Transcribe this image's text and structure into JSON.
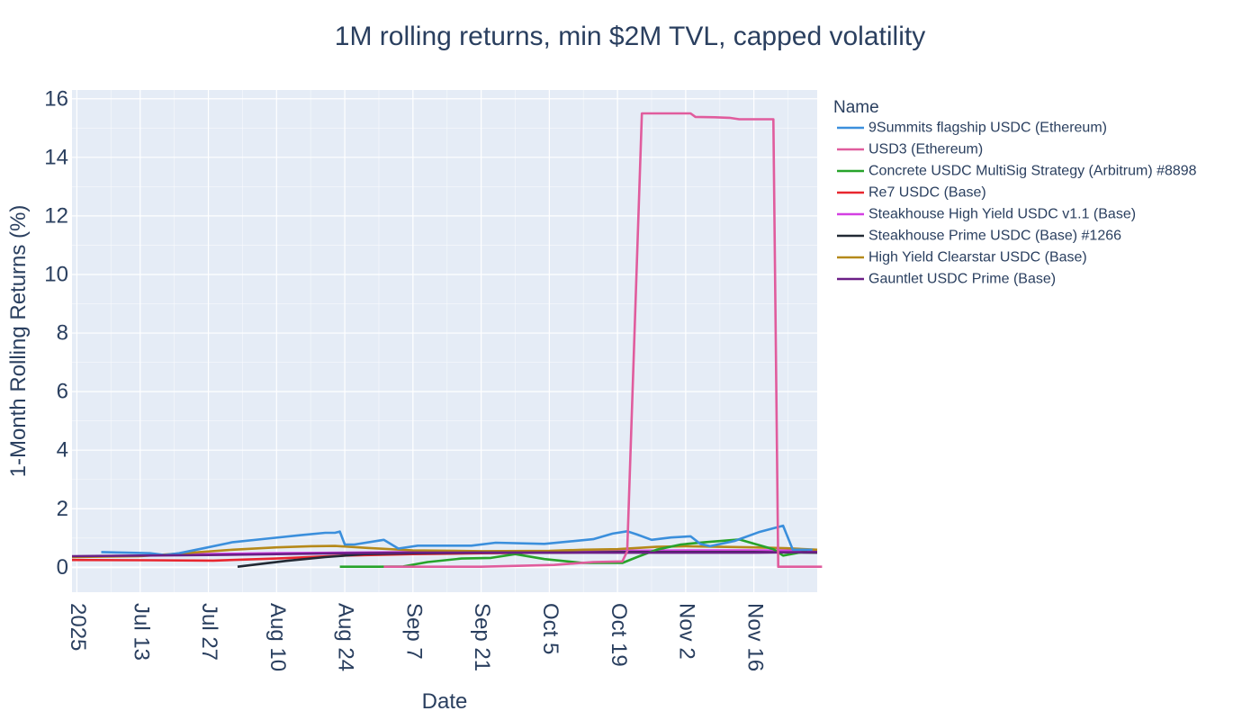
{
  "chart_data": {
    "type": "line",
    "title": "1M rolling returns, min $2M TVL, capped volatility",
    "xlabel": "Date",
    "ylabel": "1-Month Rolling Returns (%)",
    "xlim": [
      "2025-06-29",
      "2025-11-29"
    ],
    "ylim": [
      -0.85,
      16.3
    ],
    "x_ticks": [
      {
        "date": "2025-06-30",
        "label": "2025"
      },
      {
        "date": "2025-07-13",
        "label": "Jul 13"
      },
      {
        "date": "2025-07-27",
        "label": "Jul 27"
      },
      {
        "date": "2025-08-10",
        "label": "Aug 10"
      },
      {
        "date": "2025-08-24",
        "label": "Aug 24"
      },
      {
        "date": "2025-09-07",
        "label": "Sep 7"
      },
      {
        "date": "2025-09-21",
        "label": "Sep 21"
      },
      {
        "date": "2025-10-05",
        "label": "Oct 5"
      },
      {
        "date": "2025-10-19",
        "label": "Oct 19"
      },
      {
        "date": "2025-11-02",
        "label": "Nov 2"
      },
      {
        "date": "2025-11-16",
        "label": "Nov 16"
      }
    ],
    "y_ticks": [
      0,
      2,
      4,
      6,
      8,
      10,
      12,
      14,
      16
    ],
    "grid": true,
    "legend": {
      "title": "Name",
      "placement": "right"
    },
    "series": [
      {
        "name": "9Summits flagship USDC (Ethereum)",
        "color": "#3b8fdc",
        "points": [
          [
            "2025-07-05",
            0.52
          ],
          [
            "2025-07-10",
            0.5
          ],
          [
            "2025-07-15",
            0.48
          ],
          [
            "2025-07-18",
            0.42
          ],
          [
            "2025-07-21",
            0.48
          ],
          [
            "2025-07-26",
            0.65
          ],
          [
            "2025-08-01",
            0.86
          ],
          [
            "2025-08-08",
            0.98
          ],
          [
            "2025-08-15",
            1.1
          ],
          [
            "2025-08-20",
            1.18
          ],
          [
            "2025-08-22",
            1.18
          ],
          [
            "2025-08-23",
            1.22
          ],
          [
            "2025-08-24",
            0.78
          ],
          [
            "2025-08-26",
            0.78
          ],
          [
            "2025-09-01",
            0.94
          ],
          [
            "2025-09-04",
            0.64
          ],
          [
            "2025-09-08",
            0.74
          ],
          [
            "2025-09-14",
            0.74
          ],
          [
            "2025-09-19",
            0.74
          ],
          [
            "2025-09-24",
            0.84
          ],
          [
            "2025-10-04",
            0.8
          ],
          [
            "2025-10-14",
            0.96
          ],
          [
            "2025-10-18",
            1.15
          ],
          [
            "2025-10-21",
            1.23
          ],
          [
            "2025-10-23",
            1.12
          ],
          [
            "2025-10-26",
            0.94
          ],
          [
            "2025-10-30",
            1.02
          ],
          [
            "2025-11-03",
            1.06
          ],
          [
            "2025-11-05",
            0.8
          ],
          [
            "2025-11-07",
            0.72
          ],
          [
            "2025-11-12",
            0.9
          ],
          [
            "2025-11-17",
            1.2
          ],
          [
            "2025-11-22",
            1.42
          ],
          [
            "2025-11-24",
            0.6
          ],
          [
            "2025-11-28",
            0.6
          ]
        ]
      },
      {
        "name": "USD3 (Ethereum)",
        "color": "#e05c9d",
        "points": [
          [
            "2025-09-01",
            0.02
          ],
          [
            "2025-09-21",
            0.02
          ],
          [
            "2025-10-06",
            0.08
          ],
          [
            "2025-10-14",
            0.18
          ],
          [
            "2025-10-20",
            0.2
          ],
          [
            "2025-10-21",
            0.55
          ],
          [
            "2025-10-24",
            15.5
          ],
          [
            "2025-10-30",
            15.5
          ],
          [
            "2025-11-03",
            15.5
          ],
          [
            "2025-11-04",
            15.38
          ],
          [
            "2025-11-08",
            15.37
          ],
          [
            "2025-11-11",
            15.35
          ],
          [
            "2025-11-13",
            15.3
          ],
          [
            "2025-11-20",
            15.3
          ],
          [
            "2025-11-21",
            0.02
          ],
          [
            "2025-11-26",
            0.02
          ],
          [
            "2025-11-30",
            0.02
          ]
        ]
      },
      {
        "name": "Concrete USDC MultiSig Strategy (Arbitrum) #8898",
        "color": "#27a32a",
        "points": [
          [
            "2025-08-23",
            0.02
          ],
          [
            "2025-08-31",
            0.02
          ],
          [
            "2025-09-05",
            0.03
          ],
          [
            "2025-09-10",
            0.18
          ],
          [
            "2025-09-17",
            0.3
          ],
          [
            "2025-09-23",
            0.32
          ],
          [
            "2025-09-28",
            0.45
          ],
          [
            "2025-10-04",
            0.28
          ],
          [
            "2025-10-12",
            0.15
          ],
          [
            "2025-10-20",
            0.15
          ],
          [
            "2025-10-23",
            0.35
          ],
          [
            "2025-10-27",
            0.6
          ],
          [
            "2025-11-01",
            0.78
          ],
          [
            "2025-11-06",
            0.86
          ],
          [
            "2025-11-13",
            0.95
          ],
          [
            "2025-11-20",
            0.62
          ],
          [
            "2025-11-22",
            0.4
          ],
          [
            "2025-11-27",
            0.55
          ]
        ]
      },
      {
        "name": "Re7 USDC (Base)",
        "color": "#e8262e",
        "points": [
          [
            "2025-06-29",
            0.25
          ],
          [
            "2025-07-15",
            0.24
          ],
          [
            "2025-07-28",
            0.23
          ],
          [
            "2025-08-10",
            0.3
          ],
          [
            "2025-08-24",
            0.4
          ],
          [
            "2025-09-07",
            0.45
          ],
          [
            "2025-09-21",
            0.48
          ],
          [
            "2025-10-05",
            0.5
          ],
          [
            "2025-10-19",
            0.52
          ],
          [
            "2025-11-02",
            0.55
          ],
          [
            "2025-11-16",
            0.55
          ],
          [
            "2025-11-29",
            0.58
          ]
        ]
      },
      {
        "name": "Steakhouse High Yield USDC v1.1 (Base)",
        "color": "#d43fe2",
        "points": [
          [
            "2025-07-20",
            0.44
          ],
          [
            "2025-08-10",
            0.48
          ],
          [
            "2025-08-24",
            0.5
          ],
          [
            "2025-09-07",
            0.52
          ],
          [
            "2025-09-21",
            0.54
          ],
          [
            "2025-10-05",
            0.55
          ],
          [
            "2025-10-19",
            0.56
          ],
          [
            "2025-11-02",
            0.58
          ],
          [
            "2025-11-16",
            0.58
          ],
          [
            "2025-11-29",
            0.57
          ]
        ]
      },
      {
        "name": "Steakhouse Prime USDC (Base) #1266",
        "color": "#222a35",
        "points": [
          [
            "2025-08-02",
            0.02
          ],
          [
            "2025-08-06",
            0.1
          ],
          [
            "2025-08-12",
            0.22
          ],
          [
            "2025-08-20",
            0.35
          ],
          [
            "2025-08-28",
            0.45
          ],
          [
            "2025-09-07",
            0.48
          ],
          [
            "2025-09-21",
            0.5
          ],
          [
            "2025-10-05",
            0.5
          ],
          [
            "2025-10-19",
            0.52
          ],
          [
            "2025-11-02",
            0.52
          ],
          [
            "2025-11-16",
            0.52
          ],
          [
            "2025-11-29",
            0.5
          ]
        ]
      },
      {
        "name": "High Yield Clearstar USDC (Base)",
        "color": "#b5891a",
        "points": [
          [
            "2025-06-29",
            0.35
          ],
          [
            "2025-07-13",
            0.38
          ],
          [
            "2025-07-22",
            0.48
          ],
          [
            "2025-08-01",
            0.6
          ],
          [
            "2025-08-10",
            0.68
          ],
          [
            "2025-08-17",
            0.72
          ],
          [
            "2025-08-22",
            0.73
          ],
          [
            "2025-08-29",
            0.66
          ],
          [
            "2025-09-07",
            0.58
          ],
          [
            "2025-09-21",
            0.55
          ],
          [
            "2025-10-05",
            0.56
          ],
          [
            "2025-10-12",
            0.6
          ],
          [
            "2025-10-19",
            0.62
          ],
          [
            "2025-10-27",
            0.7
          ],
          [
            "2025-11-02",
            0.72
          ],
          [
            "2025-11-09",
            0.7
          ],
          [
            "2025-11-16",
            0.68
          ],
          [
            "2025-11-23",
            0.65
          ],
          [
            "2025-11-29",
            0.6
          ]
        ]
      },
      {
        "name": "Gauntlet USDC Prime (Base)",
        "color": "#6a1f86",
        "points": [
          [
            "2025-06-29",
            0.38
          ],
          [
            "2025-07-13",
            0.4
          ],
          [
            "2025-07-27",
            0.42
          ],
          [
            "2025-08-10",
            0.45
          ],
          [
            "2025-08-24",
            0.48
          ],
          [
            "2025-09-07",
            0.5
          ],
          [
            "2025-09-21",
            0.5
          ],
          [
            "2025-10-05",
            0.5
          ],
          [
            "2025-10-19",
            0.5
          ],
          [
            "2025-11-02",
            0.5
          ],
          [
            "2025-11-16",
            0.5
          ],
          [
            "2025-11-29",
            0.52
          ]
        ]
      }
    ]
  }
}
